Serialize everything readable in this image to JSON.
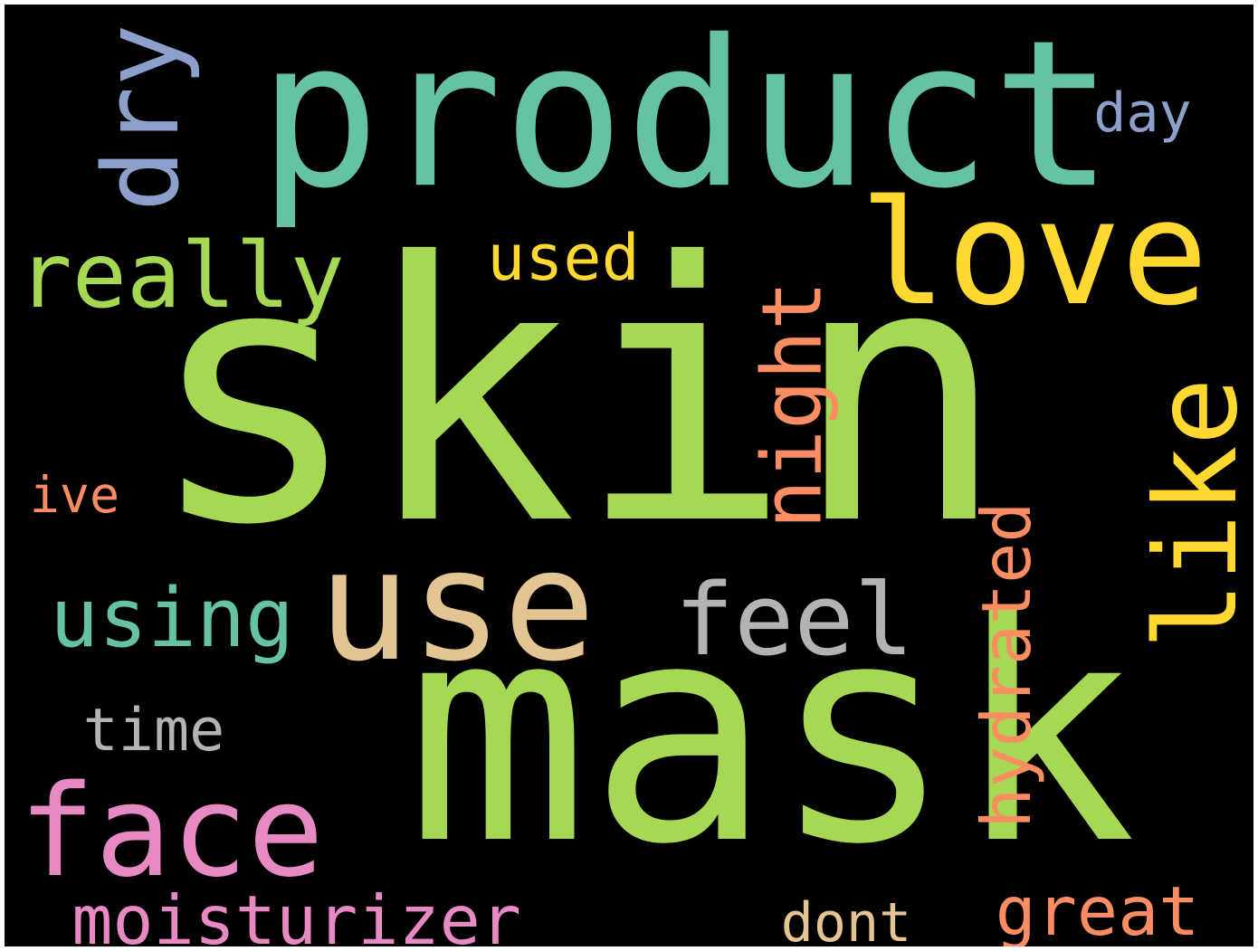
{
  "colors": {
    "background": "#000000",
    "frame": "#ffffff"
  },
  "words": [
    {
      "id": "skin",
      "text": "skin",
      "color": "#a6d854",
      "rotated": false
    },
    {
      "id": "mask",
      "text": "mask",
      "color": "#a6d854",
      "rotated": false
    },
    {
      "id": "product",
      "text": "product",
      "color": "#66c2a5",
      "rotated": false
    },
    {
      "id": "use",
      "text": "use",
      "color": "#e5c494",
      "rotated": false
    },
    {
      "id": "love",
      "text": "love",
      "color": "#ffd92f",
      "rotated": false
    },
    {
      "id": "face",
      "text": "face",
      "color": "#e78ac3",
      "rotated": false
    },
    {
      "id": "like",
      "text": "like",
      "color": "#ffd92f",
      "rotated": true
    },
    {
      "id": "feel",
      "text": "feel",
      "color": "#b3b3b3",
      "rotated": false
    },
    {
      "id": "dry",
      "text": "dry",
      "color": "#8da0cb",
      "rotated": true
    },
    {
      "id": "really",
      "text": "really",
      "color": "#a6d854",
      "rotated": false
    },
    {
      "id": "hydrated",
      "text": "hydrated",
      "color": "#fc8d62",
      "rotated": true
    },
    {
      "id": "moisturizer",
      "text": "moisturizer",
      "color": "#e78ac3",
      "rotated": false
    },
    {
      "id": "using",
      "text": "using",
      "color": "#66c2a5",
      "rotated": false
    },
    {
      "id": "night",
      "text": "night",
      "color": "#fc8d62",
      "rotated": true
    },
    {
      "id": "used",
      "text": "used",
      "color": "#ffd92f",
      "rotated": false
    },
    {
      "id": "time",
      "text": "time",
      "color": "#b3b3b3",
      "rotated": false
    },
    {
      "id": "dont",
      "text": "dont",
      "color": "#e5c494",
      "rotated": false
    },
    {
      "id": "great",
      "text": "great",
      "color": "#fc8d62",
      "rotated": false
    },
    {
      "id": "day",
      "text": "day",
      "color": "#8da0cb",
      "rotated": false
    },
    {
      "id": "ive",
      "text": "ive",
      "color": "#fc8d62",
      "rotated": false
    }
  ]
}
